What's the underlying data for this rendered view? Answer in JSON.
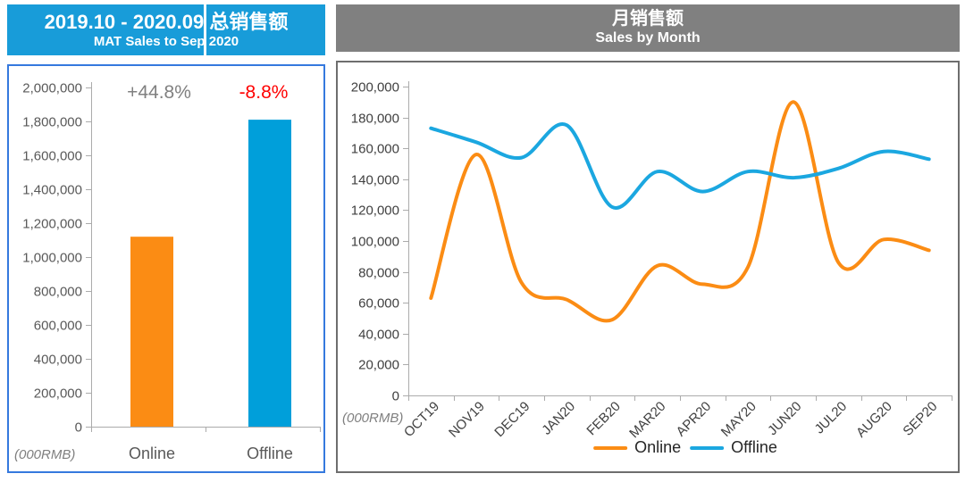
{
  "left_panel": {
    "title": "2019.10 - 2020.09 总销售额",
    "subtitle": "MAT Sales to Sep 2020",
    "title_bg": "#189CD9"
  },
  "right_panel": {
    "title": "月销售额",
    "subtitle": "Sales by Month",
    "title_bg": "#808080"
  },
  "colors": {
    "online_orange": "#FB8C14",
    "offline_blue": "#009FDA",
    "offline_line_blue": "#1BA7E0",
    "negative_red": "#FF0000",
    "growth_gray": "#808080",
    "axis_line": "#ABABAB",
    "axis_text": "#404040",
    "axis_text_left": "#595959",
    "unit_text": "#7F7F7F",
    "left_border": "#3579DE",
    "right_border": "#6E6E6E"
  },
  "chart_data": [
    {
      "type": "bar",
      "title": "2019.10 - 2020.09 总销售额",
      "subtitle": "MAT Sales to Sep 2020",
      "categories": [
        "Online",
        "Offline"
      ],
      "values": [
        1120000,
        1810000
      ],
      "bar_labels": [
        "+44.8%",
        "-8.8%"
      ],
      "bar_label_colors": [
        "#808080",
        "#FF0000"
      ],
      "bar_colors": [
        "#FB8C14",
        "#009FDA"
      ],
      "ylabel": "(000RMB)",
      "ylim": [
        0,
        2000000
      ],
      "ytick_step": 200000,
      "grid": false,
      "legend": "none"
    },
    {
      "type": "line",
      "title": "月销售额",
      "subtitle": "Sales by Month",
      "x": [
        "OCT19",
        "NOV19",
        "DEC19",
        "JAN20",
        "FEB20",
        "MAR20",
        "APR20",
        "MAY20",
        "JUN20",
        "JUL20",
        "AUG20",
        "SEP20"
      ],
      "series": [
        {
          "name": "Online",
          "color": "#FB8C14",
          "values": [
            63000,
            156000,
            73000,
            62000,
            49000,
            84000,
            72000,
            83000,
            190000,
            86000,
            101000,
            94000
          ]
        },
        {
          "name": "Offline",
          "color": "#1BA7E0",
          "values": [
            173000,
            164000,
            154000,
            175000,
            122000,
            145000,
            132000,
            145000,
            141000,
            147000,
            158000,
            153000
          ]
        }
      ],
      "ylabel": "(000RMB)",
      "ylim": [
        0,
        200000
      ],
      "ytick_step": 20000,
      "grid": false,
      "smooth": true,
      "legend_position": "bottom"
    }
  ]
}
